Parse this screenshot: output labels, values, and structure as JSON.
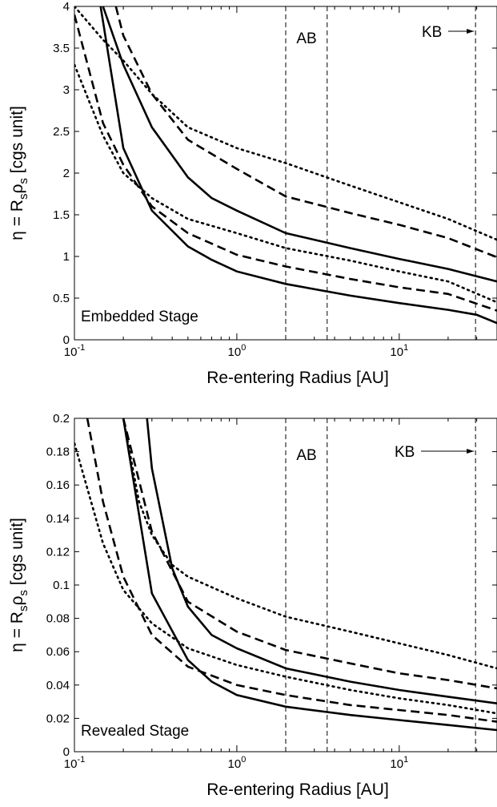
{
  "chart_data": [
    {
      "type": "line",
      "annotation": "Embedded Stage",
      "xlabel": "Re-entering Radius [AU]",
      "ylabel": "η = R",
      "ylabel_sub1": "s",
      "ylabel_mid": "ρ",
      "ylabel_sub2": "s",
      "ylabel_tail": " [cgs unit]",
      "xscale": "log",
      "xlim": [
        0.1,
        40
      ],
      "ylim": [
        0,
        4
      ],
      "xticks": [
        {
          "v": 0.1,
          "base": "10",
          "exp": "-1"
        },
        {
          "v": 1,
          "base": "10",
          "exp": "0"
        },
        {
          "v": 10,
          "base": "10",
          "exp": "1"
        }
      ],
      "yticks": [
        "0",
        "0.5",
        "1",
        "1.5",
        "2",
        "2.5",
        "3",
        "3.5",
        "4"
      ],
      "vlines": [
        2.0,
        3.6,
        29.5
      ],
      "labels": {
        "ab": "AB",
        "kb": "KB"
      },
      "series": [
        {
          "style": "solid",
          "x": [
            0.145,
            0.2,
            0.3,
            0.5,
            0.7,
            1,
            2,
            5,
            10,
            20,
            30,
            40
          ],
          "y": [
            4.0,
            2.3,
            1.55,
            1.12,
            0.96,
            0.82,
            0.67,
            0.53,
            0.44,
            0.36,
            0.3,
            0.2
          ]
        },
        {
          "style": "solid",
          "x": [
            0.15,
            0.2,
            0.3,
            0.5,
            0.7,
            1,
            2,
            5,
            10,
            20,
            40
          ],
          "y": [
            4.0,
            3.3,
            2.55,
            1.95,
            1.7,
            1.55,
            1.28,
            1.1,
            0.97,
            0.85,
            0.7
          ]
        },
        {
          "style": "dashed",
          "x": [
            0.1,
            0.15,
            0.2,
            0.3,
            0.5,
            1,
            2,
            5,
            10,
            20,
            40
          ],
          "y": [
            3.9,
            2.6,
            2.1,
            1.6,
            1.28,
            1.02,
            0.88,
            0.73,
            0.63,
            0.55,
            0.35
          ]
        },
        {
          "style": "dashed",
          "x": [
            0.18,
            0.2,
            0.3,
            0.5,
            1,
            2,
            5,
            10,
            20,
            40
          ],
          "y": [
            4.0,
            3.65,
            2.95,
            2.4,
            2.05,
            1.72,
            1.52,
            1.38,
            1.22,
            0.99
          ]
        },
        {
          "style": "dotted",
          "x": [
            0.1,
            0.15,
            0.2,
            0.3,
            0.5,
            1,
            2,
            5,
            10,
            20,
            40
          ],
          "y": [
            3.3,
            2.45,
            2.0,
            1.7,
            1.45,
            1.28,
            1.1,
            0.95,
            0.82,
            0.7,
            0.45
          ]
        },
        {
          "style": "dotted",
          "x": [
            0.1,
            0.15,
            0.2,
            0.3,
            0.5,
            1,
            2,
            5,
            10,
            20,
            40
          ],
          "y": [
            4.0,
            3.6,
            3.35,
            2.95,
            2.55,
            2.3,
            2.12,
            1.85,
            1.65,
            1.45,
            1.2
          ]
        }
      ]
    },
    {
      "type": "line",
      "annotation": "Revealed Stage",
      "xlabel": "Re-entering Radius [AU]",
      "ylabel": "η = R",
      "ylabel_sub1": "s",
      "ylabel_mid": "ρ",
      "ylabel_sub2": "s",
      "ylabel_tail": " [cgs unit]",
      "xscale": "log",
      "xlim": [
        0.1,
        40
      ],
      "ylim": [
        0,
        0.2
      ],
      "xticks": [
        {
          "v": 0.1,
          "base": "10",
          "exp": "-1"
        },
        {
          "v": 1,
          "base": "10",
          "exp": "0"
        },
        {
          "v": 10,
          "base": "10",
          "exp": "1"
        }
      ],
      "yticks": [
        "0",
        "0.02",
        "0.04",
        "0.06",
        "0.08",
        "0.1",
        "0.12",
        "0.14",
        "0.16",
        "0.18",
        "0.2"
      ],
      "vlines": [
        2.0,
        3.6,
        29.5
      ],
      "labels": {
        "ab": "AB",
        "kb": "KB"
      },
      "series": [
        {
          "style": "solid",
          "x": [
            0.2,
            0.3,
            0.5,
            0.7,
            1,
            2,
            5,
            10,
            20,
            40
          ],
          "y": [
            0.2,
            0.095,
            0.055,
            0.042,
            0.034,
            0.027,
            0.022,
            0.019,
            0.016,
            0.013
          ]
        },
        {
          "style": "solid",
          "x": [
            0.28,
            0.3,
            0.4,
            0.5,
            0.7,
            1,
            2,
            5,
            10,
            20,
            40
          ],
          "y": [
            0.2,
            0.17,
            0.11,
            0.087,
            0.07,
            0.062,
            0.05,
            0.042,
            0.037,
            0.033,
            0.029
          ]
        },
        {
          "style": "dashed",
          "x": [
            0.12,
            0.15,
            0.2,
            0.3,
            0.5,
            1,
            2,
            5,
            10,
            20,
            40
          ],
          "y": [
            0.2,
            0.15,
            0.105,
            0.07,
            0.051,
            0.04,
            0.034,
            0.028,
            0.025,
            0.022,
            0.018
          ]
        },
        {
          "style": "dashed",
          "x": [
            0.2,
            0.3,
            0.5,
            1,
            2,
            5,
            10,
            20,
            40
          ],
          "y": [
            0.2,
            0.132,
            0.09,
            0.072,
            0.061,
            0.053,
            0.047,
            0.043,
            0.038
          ]
        },
        {
          "style": "dotted",
          "x": [
            0.1,
            0.15,
            0.2,
            0.3,
            0.5,
            1,
            2,
            5,
            10,
            20,
            40
          ],
          "y": [
            0.185,
            0.125,
            0.097,
            0.077,
            0.062,
            0.052,
            0.045,
            0.037,
            0.032,
            0.028,
            0.023
          ]
        },
        {
          "style": "dotted",
          "x": [
            0.2,
            0.25,
            0.3,
            0.4,
            0.5,
            1,
            2,
            5,
            10,
            20,
            40
          ],
          "y": [
            0.2,
            0.15,
            0.13,
            0.112,
            0.105,
            0.092,
            0.081,
            0.072,
            0.065,
            0.058,
            0.05
          ]
        }
      ]
    }
  ]
}
